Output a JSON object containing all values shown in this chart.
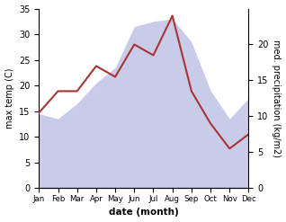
{
  "months": [
    "Jan",
    "Feb",
    "Mar",
    "Apr",
    "May",
    "Jun",
    "Jul",
    "Aug",
    "Sep",
    "Oct",
    "Nov",
    "Dec"
  ],
  "max_temp": [
    14.5,
    13.5,
    16.5,
    20.5,
    23.5,
    31.5,
    32.5,
    33.0,
    28.5,
    19.0,
    13.5,
    17.5
  ],
  "precipitation": [
    10.5,
    13.5,
    13.5,
    17.0,
    15.5,
    20.0,
    18.5,
    24.0,
    13.5,
    9.0,
    5.5,
    7.5
  ],
  "temp_fill_color": "#c8cce8",
  "precip_color": "#aa3333",
  "ylabel_left": "max temp (C)",
  "ylabel_right": "med. precipitation (kg/m2)",
  "xlabel": "date (month)",
  "ylim_left": [
    0,
    35
  ],
  "ylim_right": [
    0,
    25
  ],
  "yticks_left": [
    0,
    5,
    10,
    15,
    20,
    25,
    30,
    35
  ],
  "yticks_right": [
    0,
    5,
    10,
    15,
    20
  ],
  "bg_color": "#ffffff"
}
